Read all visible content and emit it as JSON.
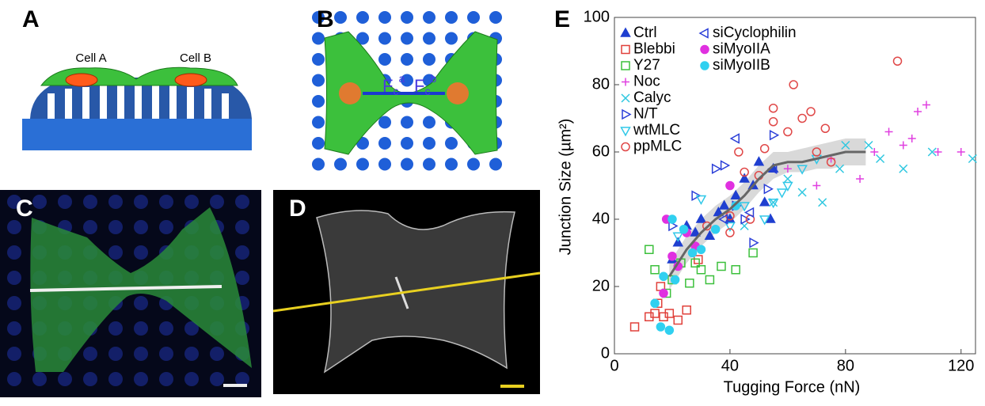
{
  "panels": {
    "A": {
      "label": "A",
      "cell_a": "Cell A",
      "cell_b": "Cell B"
    },
    "B": {
      "label": "B",
      "force_a": {
        "base": "F",
        "sub": "c",
        "sup": "a"
      },
      "force_b": {
        "base": "F",
        "sub": "c",
        "sup": "b"
      }
    },
    "C": {
      "label": "C"
    },
    "D": {
      "label": "D"
    },
    "E": {
      "label": "E"
    }
  },
  "chart_data": {
    "type": "scatter",
    "x_label": "Tugging Force (nN)",
    "y_label": "Junction Size (µm²)",
    "xlim": [
      0,
      125
    ],
    "ylim": [
      0,
      100
    ],
    "xticks": [
      0,
      40,
      80,
      120
    ],
    "yticks": [
      0,
      20,
      40,
      60,
      80,
      100
    ],
    "legend": "upper left",
    "series": [
      {
        "name": "Ctrl",
        "color": "#1f3fd0",
        "marker": "triangle-up",
        "filled": true,
        "x": [
          20,
          22,
          25,
          28,
          30,
          33,
          36,
          38,
          40,
          42,
          45,
          48,
          50,
          52,
          54,
          55
        ],
        "values": [
          28,
          33,
          38,
          36,
          40,
          35,
          42,
          44,
          40,
          47,
          52,
          50,
          57,
          45,
          40,
          55
        ]
      },
      {
        "name": "Blebbi",
        "color": "#e0403a",
        "marker": "square",
        "filled": false,
        "x": [
          7,
          12,
          14,
          15,
          17,
          19,
          22,
          25,
          29,
          16
        ],
        "values": [
          8,
          11,
          12,
          15,
          11,
          12,
          10,
          13,
          28,
          20
        ]
      },
      {
        "name": "Y27",
        "color": "#3cc03c",
        "marker": "square",
        "filled": false,
        "x": [
          12,
          14,
          18,
          20,
          23,
          26,
          30,
          33,
          37,
          42,
          48,
          28
        ],
        "values": [
          31,
          25,
          18,
          22,
          27,
          21,
          25,
          22,
          26,
          25,
          30,
          27
        ]
      },
      {
        "name": "Noc",
        "color": "#e040e0",
        "marker": "plus",
        "filled": false,
        "x": [
          60,
          75,
          85,
          90,
          100,
          103,
          105,
          108,
          112,
          120,
          95,
          70
        ],
        "values": [
          55,
          58,
          52,
          60,
          62,
          64,
          72,
          74,
          60,
          60,
          66,
          50
        ]
      },
      {
        "name": "Calyc",
        "color": "#30c8e0",
        "marker": "cross",
        "filled": false,
        "x": [
          45,
          55,
          60,
          65,
          72,
          78,
          80,
          88,
          92,
          100,
          110,
          124
        ],
        "values": [
          38,
          45,
          52,
          48,
          45,
          55,
          62,
          62,
          58,
          55,
          60,
          58
        ]
      },
      {
        "name": "N/T",
        "color": "#2a3ed8",
        "marker": "triangle-right",
        "filled": false,
        "x": [
          20,
          28,
          35,
          38,
          42,
          48,
          53,
          55,
          45
        ],
        "values": [
          38,
          47,
          55,
          56,
          44,
          33,
          49,
          65,
          40
        ]
      },
      {
        "name": "wtMLC",
        "color": "#30c8e8",
        "marker": "triangle-down",
        "filled": false,
        "x": [
          22,
          30,
          40,
          45,
          52,
          55,
          60,
          65,
          70,
          58
        ],
        "values": [
          35,
          46,
          38,
          44,
          40,
          45,
          50,
          55,
          58,
          48
        ]
      },
      {
        "name": "ppMLC",
        "color": "#e04848",
        "marker": "circle",
        "filled": false,
        "x": [
          32,
          40,
          43,
          45,
          50,
          52,
          55,
          55,
          60,
          62,
          65,
          68,
          70,
          73,
          75,
          98,
          40,
          47
        ],
        "values": [
          38,
          41,
          60,
          54,
          53,
          61,
          73,
          69,
          66,
          80,
          70,
          72,
          60,
          67,
          57,
          87,
          36,
          40
        ]
      },
      {
        "name": "siCyclophilin",
        "color": "#2a3ed8",
        "marker": "triangle-left",
        "filled": false,
        "x": [
          42,
          47,
          38,
          55
        ],
        "values": [
          64,
          42,
          40,
          55
        ]
      },
      {
        "name": "siMyoIIA",
        "color": "#e030e0",
        "marker": "circle",
        "filled": true,
        "x": [
          17,
          18,
          20,
          25,
          28,
          40,
          22
        ],
        "values": [
          18,
          40,
          29,
          36,
          32,
          50,
          26
        ]
      },
      {
        "name": "siMyoIIB",
        "color": "#30d0f0",
        "marker": "circle",
        "filled": true,
        "x": [
          14,
          16,
          17,
          19,
          21,
          24,
          27,
          30,
          35,
          42,
          20
        ],
        "values": [
          15,
          8,
          23,
          7,
          22,
          37,
          30,
          31,
          37,
          44,
          40
        ]
      }
    ],
    "fit": {
      "color": "#666666",
      "band_color": "#d0d0d0",
      "x": [
        19,
        25,
        30,
        35,
        40,
        45,
        50,
        55,
        60,
        65,
        70,
        75,
        80,
        87
      ],
      "values": [
        23,
        31,
        36,
        40,
        43,
        47,
        52,
        56,
        57,
        57,
        58,
        59,
        60,
        60
      ],
      "lower": [
        19,
        27,
        32,
        36,
        39,
        43,
        48,
        52,
        54,
        54,
        55,
        55,
        56,
        56
      ],
      "upper": [
        27,
        35,
        40,
        44,
        47,
        51,
        56,
        60,
        60,
        61,
        62,
        63,
        64,
        64
      ]
    }
  }
}
